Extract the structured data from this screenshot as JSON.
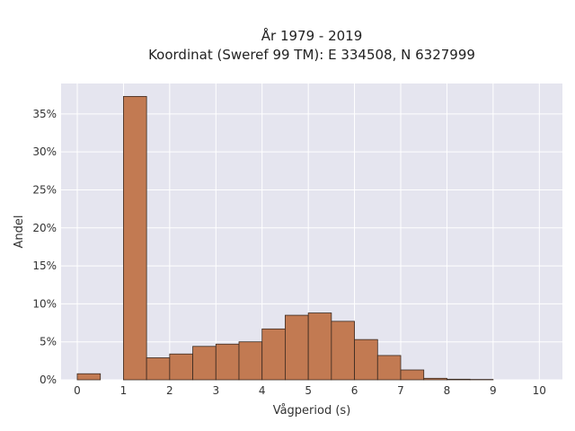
{
  "chart_data": {
    "type": "bar",
    "title_line1": "År 1979 - 2019",
    "title_line2": "Koordinat (Sweref 99 TM): E 334508, N 6327999",
    "xlabel": "Vågperiod (s)",
    "ylabel": "Andel",
    "bin_width": 0.5,
    "bins": [
      {
        "x": 0.0,
        "value": 0.008
      },
      {
        "x": 0.5,
        "value": 0.0
      },
      {
        "x": 1.0,
        "value": 0.373
      },
      {
        "x": 1.5,
        "value": 0.029
      },
      {
        "x": 2.0,
        "value": 0.034
      },
      {
        "x": 2.5,
        "value": 0.044
      },
      {
        "x": 3.0,
        "value": 0.047
      },
      {
        "x": 3.5,
        "value": 0.05
      },
      {
        "x": 4.0,
        "value": 0.067
      },
      {
        "x": 4.5,
        "value": 0.085
      },
      {
        "x": 5.0,
        "value": 0.088
      },
      {
        "x": 5.5,
        "value": 0.077
      },
      {
        "x": 6.0,
        "value": 0.053
      },
      {
        "x": 6.5,
        "value": 0.032
      },
      {
        "x": 7.0,
        "value": 0.013
      },
      {
        "x": 7.5,
        "value": 0.002
      },
      {
        "x": 8.0,
        "value": 0.0008
      },
      {
        "x": 8.5,
        "value": 0.0005
      }
    ],
    "xlim": [
      -0.35,
      10.5
    ],
    "ylim": [
      0,
      0.39
    ],
    "xticks": [
      "0",
      "1",
      "2",
      "3",
      "4",
      "5",
      "6",
      "7",
      "8",
      "9",
      "10"
    ],
    "yticks": [
      "0%",
      "5%",
      "10%",
      "15%",
      "20%",
      "25%",
      "30%",
      "35%"
    ],
    "bar_color": "#c27a52",
    "bar_edge_color": "#3a2a20",
    "plot_background": "#e5e5ef",
    "grid": true
  }
}
